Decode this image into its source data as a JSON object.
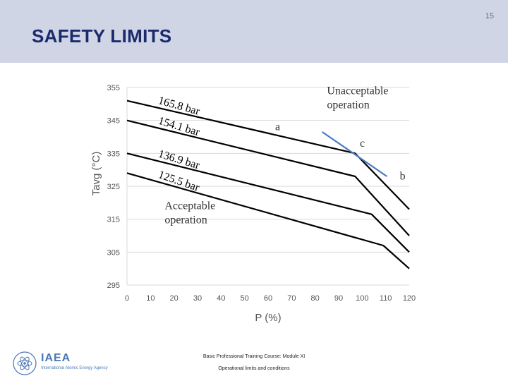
{
  "slide": {
    "title": "SAFETY LIMITS",
    "page_number": "15"
  },
  "footer": {
    "course": "Basic Professional Training Course: Module XI",
    "topic": "Operational limits and conditions",
    "logo_text": "IAEA",
    "logo_subtitle": "International Atomic Energy Agency"
  },
  "colors": {
    "header_band": "#d0d5e6",
    "title": "#1a2a6c",
    "curve": "#000000",
    "boundary_c": "#4a78c0",
    "axis_text": "#555555",
    "gridline": "#d9d9d9"
  },
  "chart_data": {
    "type": "line",
    "title": "",
    "xlabel": "P (%)",
    "ylabel": "Tavg (°C)",
    "xlim": [
      0,
      120
    ],
    "ylim": [
      295,
      355
    ],
    "xticks": [
      "0",
      "10",
      "20",
      "30",
      "40",
      "50",
      "60",
      "70",
      "80",
      "90",
      "100",
      "110",
      "120"
    ],
    "yticks": [
      "295",
      "305",
      "315",
      "325",
      "335",
      "345",
      "355"
    ],
    "grid": "horizontal",
    "series": [
      {
        "name": "165.8 bar",
        "x": [
          0,
          97,
          120
        ],
        "y": [
          351,
          335,
          318
        ]
      },
      {
        "name": "154.1 bar",
        "x": [
          0,
          97,
          120
        ],
        "y": [
          345,
          328,
          310
        ]
      },
      {
        "name": "136.9 bar",
        "x": [
          0,
          104,
          120
        ],
        "y": [
          335,
          316.5,
          305
        ]
      },
      {
        "name": "125.5 bar",
        "x": [
          0,
          109,
          120
        ],
        "y": [
          329,
          307,
          300
        ]
      }
    ],
    "boundary_line": {
      "x": [
        83,
        110.5
      ],
      "y": [
        341.5,
        328
      ]
    },
    "annotations": [
      {
        "text": "Unacceptable operation",
        "x": 85,
        "y": 353
      },
      {
        "text": "Acceptable operation",
        "x": 16,
        "y": 318
      },
      {
        "text": "a",
        "x": 63,
        "y": 342
      },
      {
        "text": "b",
        "x": 116,
        "y": 327
      },
      {
        "text": "c",
        "x": 99,
        "y": 337
      }
    ]
  }
}
